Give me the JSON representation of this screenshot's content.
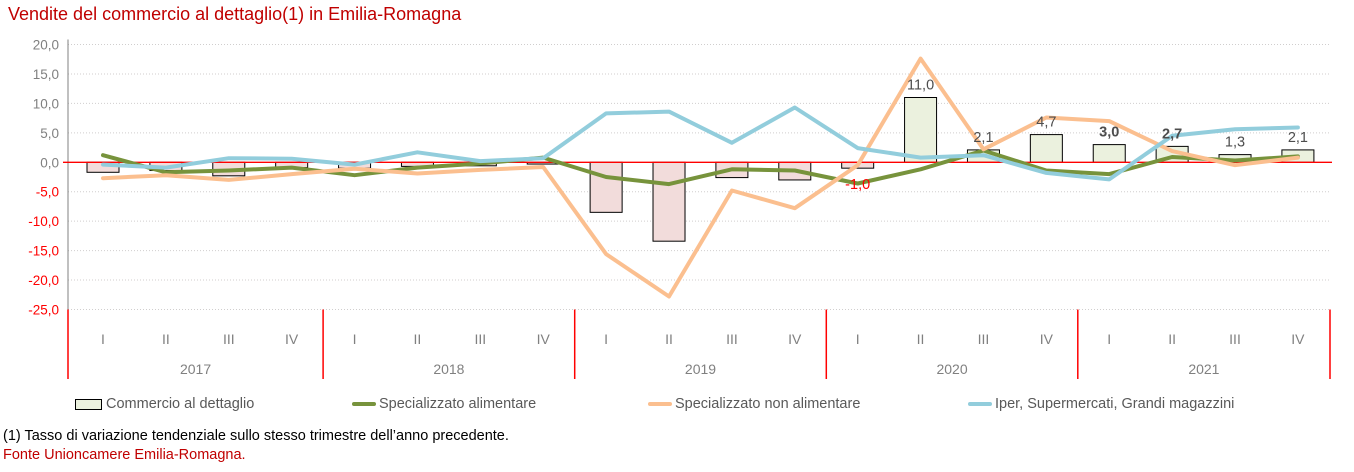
{
  "title": "Vendite del commercio al dettaglio(1) in Emilia-Romagna",
  "footnotes": {
    "definition": "(1) Tasso di variazione tendenziale sullo stesso trimestre dell’anno precedente.",
    "source": "Fonte Unioncamere Emilia-Romagna."
  },
  "chart_data": {
    "type": "combo bar+line",
    "title": "Vendite del commercio al dettaglio(1) in Emilia-Romagna",
    "xlabel": "",
    "ylabel": "",
    "ylim": [
      -25,
      20
    ],
    "ytick_step": 5,
    "ytick_labels": [
      "20,0",
      "15,0",
      "10,0",
      "5,0",
      "0,0",
      "-5,0",
      "-10,0",
      "-15,0",
      "-20,0",
      "-25,0"
    ],
    "grid": "dotted horizontal gridlines, red zero line, red vertical year separators",
    "legend_position": "bottom",
    "years": [
      "2017",
      "2018",
      "2019",
      "2020",
      "2021"
    ],
    "quarter_labels": [
      "I",
      "II",
      "III",
      "IV"
    ],
    "categories": [
      "2017-I",
      "2017-II",
      "2017-III",
      "2017-IV",
      "2018-I",
      "2018-II",
      "2018-III",
      "2018-IV",
      "2019-I",
      "2019-II",
      "2019-III",
      "2019-IV",
      "2020-I",
      "2020-II",
      "2020-III",
      "2020-IV",
      "2021-I",
      "2021-II",
      "2021-III",
      "2021-IV"
    ],
    "axis_label_color": "#808080",
    "negative_tick_color": "#ff0000",
    "zero_line_color": "#ff0000",
    "separator_color": "#ff0000",
    "data_label_color": "#4d4d4d",
    "data_label_negative_color": "#ff0000",
    "series": [
      {
        "name": "Commercio al dettaglio",
        "type": "bar",
        "fill_positive": "#ebf1de",
        "fill_negative": "#f2dcdb",
        "stroke": "#000000",
        "values": [
          -1.7,
          -1.4,
          -2.3,
          -0.9,
          -1.0,
          -0.7,
          -0.6,
          -0.3,
          -8.5,
          -13.4,
          -2.6,
          -3.0,
          -1.0,
          11.0,
          2.1,
          4.7,
          3.0,
          2.7,
          1.3,
          2.1
        ],
        "data_labels": [
          "",
          "",
          "",
          "",
          "",
          "",
          "",
          "",
          "",
          "",
          "",
          "",
          "-1,0",
          "11,0",
          "2,1",
          "4,7",
          "3,0",
          "2,7",
          "1,3",
          "2,1"
        ],
        "data_labels_bold": [
          16,
          17
        ]
      },
      {
        "name": "Specializzato alimentare",
        "type": "line",
        "color": "#77933c",
        "values": [
          1.2,
          -1.7,
          -1.4,
          -0.9,
          -2.2,
          -0.9,
          -0.2,
          0.8,
          -2.5,
          -3.7,
          -1.2,
          -1.4,
          -3.6,
          -1.2,
          2.0,
          -1.4,
          -2.0,
          0.9,
          0.3,
          1.0
        ]
      },
      {
        "name": "Specializzato non alimentare",
        "type": "line",
        "color": "#fbbf8f",
        "values": [
          -2.7,
          -2.2,
          -3.0,
          -2.0,
          -1.1,
          -1.9,
          -1.3,
          -0.8,
          -15.6,
          -22.8,
          -4.8,
          -7.8,
          -0.5,
          17.6,
          2.2,
          7.6,
          7.0,
          1.9,
          -0.5,
          0.8
        ]
      },
      {
        "name": "Iper, Supermercati, Grandi magazzini",
        "type": "line",
        "color": "#92cddc",
        "values": [
          -0.4,
          -0.9,
          0.7,
          0.6,
          -0.4,
          1.7,
          0.2,
          0.7,
          8.3,
          8.6,
          3.3,
          9.3,
          2.4,
          0.8,
          1.2,
          -1.8,
          -2.9,
          4.5,
          5.6,
          5.9
        ]
      }
    ]
  }
}
